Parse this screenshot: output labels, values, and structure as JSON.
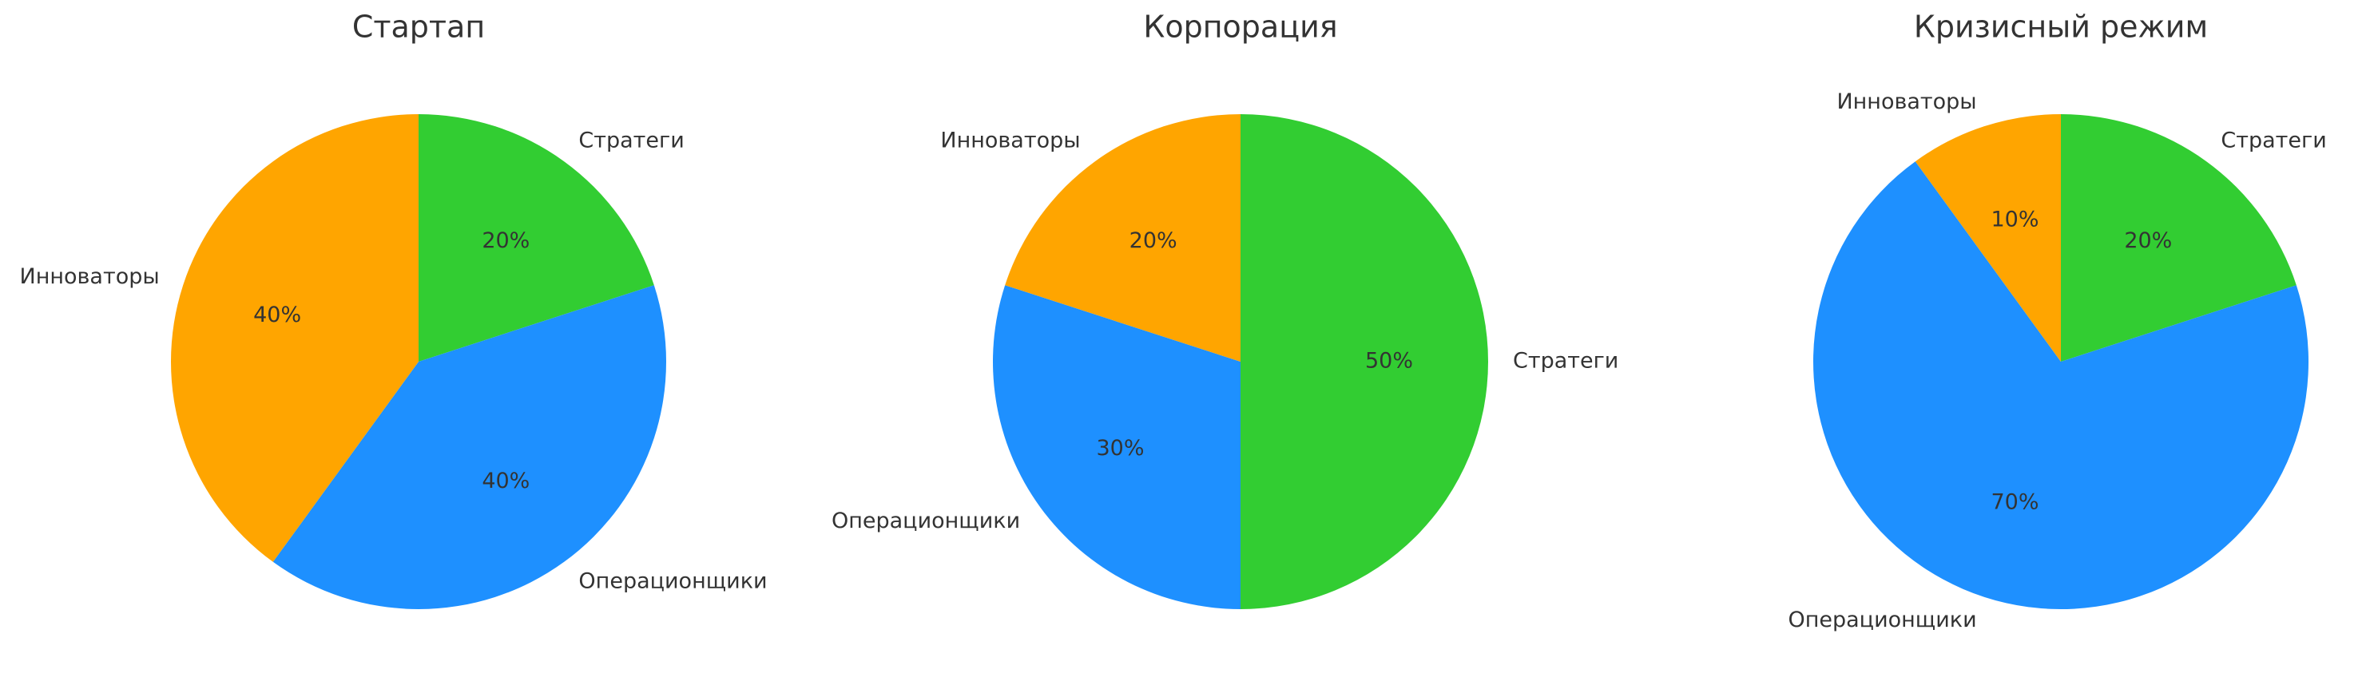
{
  "chart_data": [
    {
      "type": "pie",
      "title": "Стартап",
      "categories": [
        "Стратеги",
        "Операционщики",
        "Инноваторы"
      ],
      "values": [
        20,
        40,
        40
      ],
      "value_labels": [
        "20%",
        "40%",
        "40%"
      ],
      "colors": [
        "#32cd32",
        "#1e90ff",
        "#ffa500"
      ]
    },
    {
      "type": "pie",
      "title": "Корпорация",
      "categories": [
        "Стратеги",
        "Операционщики",
        "Инноваторы"
      ],
      "values": [
        50,
        30,
        20
      ],
      "value_labels": [
        "50%",
        "30%",
        "20%"
      ],
      "colors": [
        "#32cd32",
        "#1e90ff",
        "#ffa500"
      ]
    },
    {
      "type": "pie",
      "title": "Кризисный режим",
      "categories": [
        "Стратеги",
        "Операционщики",
        "Инноваторы"
      ],
      "values": [
        20,
        70,
        10
      ],
      "value_labels": [
        "20%",
        "70%",
        "10%"
      ],
      "colors": [
        "#32cd32",
        "#1e90ff",
        "#ffa500"
      ]
    }
  ]
}
